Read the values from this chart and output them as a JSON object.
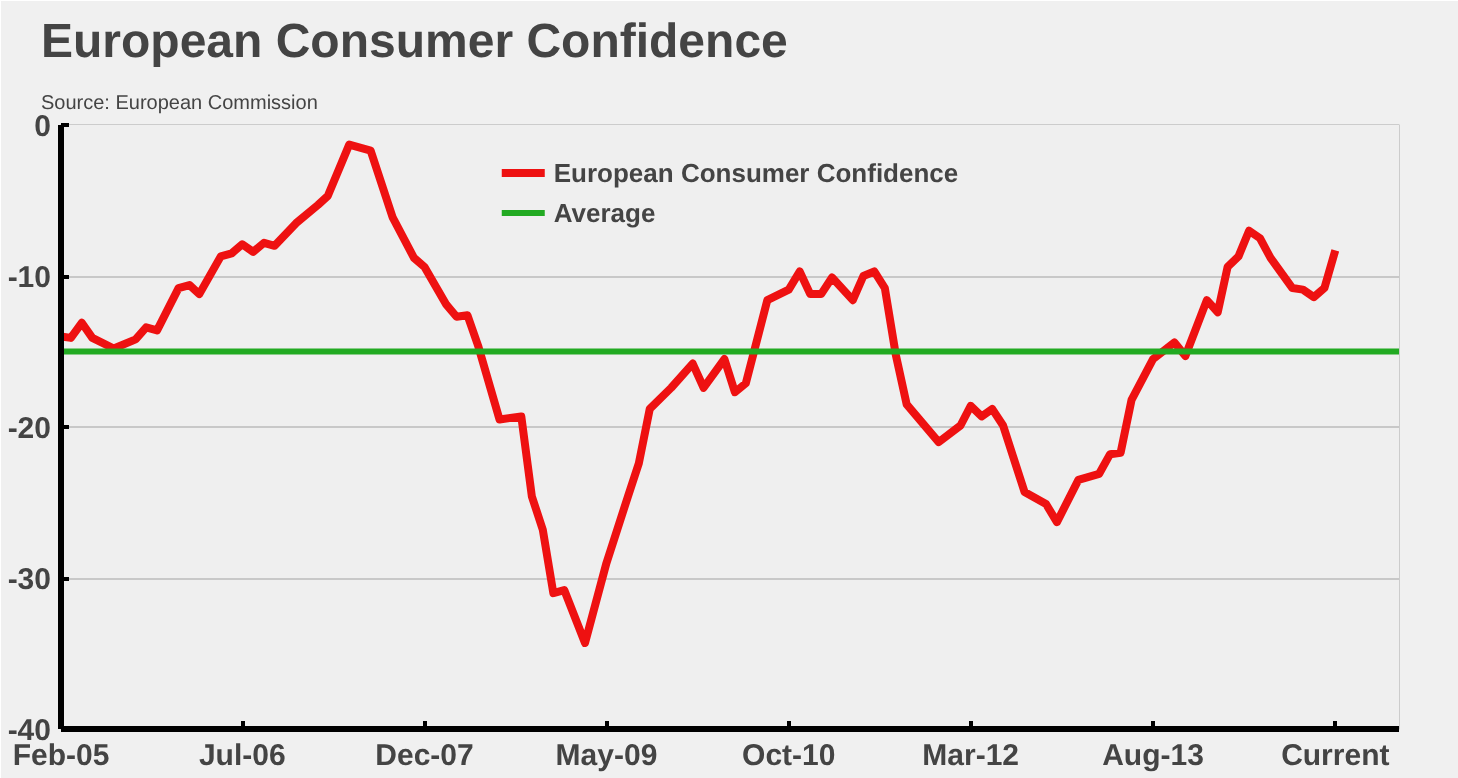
{
  "chart_data": {
    "type": "line",
    "title": "European Consumer Confidence",
    "annotations": [
      "Source: European Commission"
    ],
    "x": [
      "2005-02",
      "2005-03",
      "2005-04",
      "2005-05",
      "2005-07",
      "2005-09",
      "2005-10",
      "2005-11",
      "2006-01",
      "2006-02",
      "2006-03",
      "2006-05",
      "2006-06",
      "2006-07",
      "2006-08",
      "2006-09",
      "2006-10",
      "2006-12",
      "2007-02",
      "2007-03",
      "2007-05",
      "2007-07",
      "2007-09",
      "2007-11",
      "2007-12",
      "2008-02",
      "2008-03",
      "2008-04",
      "2008-05",
      "2008-07",
      "2008-09",
      "2008-10",
      "2008-11",
      "2008-12",
      "2009-01",
      "2009-03",
      "2009-05",
      "2009-07",
      "2009-08",
      "2009-09",
      "2009-11",
      "2010-01",
      "2010-02",
      "2010-04",
      "2010-05",
      "2010-06",
      "2010-08",
      "2010-10",
      "2010-11",
      "2010-12",
      "2011-01",
      "2011-02",
      "2011-04",
      "2011-05",
      "2011-06",
      "2011-07",
      "2011-08",
      "2011-09",
      "2011-12",
      "2012-02",
      "2012-03",
      "2012-04",
      "2012-05",
      "2012-06",
      "2012-08",
      "2012-10",
      "2012-11",
      "2013-01",
      "2013-03",
      "2013-04",
      "2013-05",
      "2013-06",
      "2013-08",
      "2013-10",
      "2013-11",
      "2014-01",
      "2014-02",
      "2014-03",
      "2014-04",
      "2014-05",
      "2014-06",
      "2014-07",
      "2014-09",
      "2014-10",
      "2014-11",
      "2014-12",
      "2015-01"
    ],
    "series": [
      {
        "name": "European Consumer Confidence",
        "color": "#ee1111",
        "values": [
          -14,
          -14.1,
          -13.1,
          -14.1,
          -14.8,
          -14.2,
          -13.4,
          -13.6,
          -10.8,
          -10.6,
          -11.2,
          -8.7,
          -8.5,
          -7.9,
          -8.4,
          -7.8,
          -8.0,
          -6.5,
          -5.3,
          -4.7,
          -1.3,
          -1.7,
          -6.1,
          -8.8,
          -9.4,
          -11.9,
          -12.7,
          -12.6,
          -14.6,
          -19.5,
          -19.3,
          -24.6,
          -26.8,
          -31,
          -30.8,
          -34.3,
          -29,
          -24.6,
          -22.4,
          -18.8,
          -17.4,
          -15.8,
          -17.4,
          -15.5,
          -17.7,
          -17.1,
          -11.6,
          -10.9,
          -9.7,
          -11.2,
          -11.2,
          -10.1,
          -11.6,
          -10,
          -9.7,
          -10.8,
          -15.2,
          -18.5,
          -21,
          -19.9,
          -18.6,
          -19.3,
          -18.8,
          -19.9,
          -24.3,
          -25.1,
          -26.3,
          -23.5,
          -23.1,
          -21.8,
          -21.7,
          -18.2,
          -15.5,
          -14.4,
          -15.3,
          -11.6,
          -12.4,
          -9.4,
          -8.7,
          -7,
          -7.5,
          -8.8,
          -10.8,
          -10.9,
          -11.4,
          -10.8,
          -8.3
        ]
      }
    ],
    "ref_lines": [
      {
        "axis": "y",
        "value": -15,
        "label": "Average",
        "color": "#22aa22"
      }
    ],
    "xlim": [
      "2005-02",
      "2015-07"
    ],
    "xticks": [
      {
        "value": "2005-02",
        "label": "Feb-05"
      },
      {
        "value": "2006-07",
        "label": "Jul-06"
      },
      {
        "value": "2007-12",
        "label": "Dec-07"
      },
      {
        "value": "2009-05",
        "label": "May-09"
      },
      {
        "value": "2010-10",
        "label": "Oct-10"
      },
      {
        "value": "2012-03",
        "label": "Mar-12"
      },
      {
        "value": "2013-08",
        "label": "Aug-13"
      },
      {
        "value": "2015-01",
        "label": "Current"
      }
    ],
    "ylim": [
      -40,
      0
    ],
    "yticks": [
      0,
      -10,
      -20,
      -30,
      -40
    ],
    "grid": "y",
    "legend": "top",
    "line_style": "solid",
    "marker": "none"
  }
}
